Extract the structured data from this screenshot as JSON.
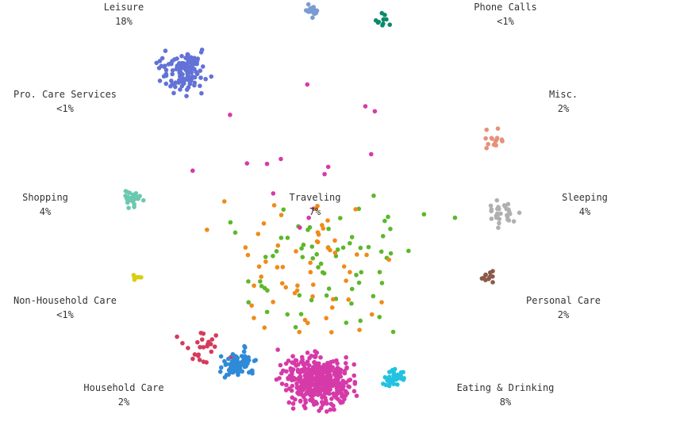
{
  "activities": [
    {
      "label": "Leisure",
      "share": "18%",
      "color": "#6272d6"
    },
    {
      "label": "Phone Calls",
      "share": "<1%",
      "color": "#0a8a6a"
    },
    {
      "label": "Pro. Care Services",
      "share": "<1%",
      "color": "#7b9bd2"
    },
    {
      "label": "Misc.",
      "share": "2%",
      "color": "#e8907a"
    },
    {
      "label": "Shopping",
      "share": "4%",
      "color": "#6cc9b0"
    },
    {
      "label": "Traveling",
      "share": "7%",
      "color": "#b0b0b0"
    },
    {
      "label": "Sleeping",
      "share": "4%",
      "color": "#d8cf10"
    },
    {
      "label": "Non-Household Care",
      "share": "<1%",
      "color": "#8b5a4a"
    },
    {
      "label": "Personal Care",
      "share": "2%",
      "color": "#2f8ad8"
    },
    {
      "label": "Household Care",
      "share": "2%",
      "color": "#22c2e0"
    },
    {
      "label": "Eating & Drinking",
      "share": "8%",
      "color": "#f08a18"
    }
  ]
}
